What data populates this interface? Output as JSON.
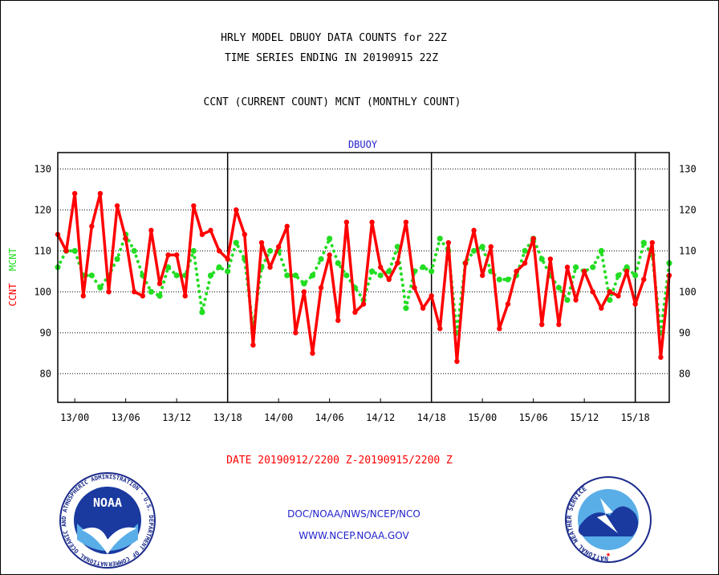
{
  "header": {
    "title_line1": "HRLY MODEL DBUOY DATA COUNTS for 22Z",
    "title_line2": "TIME SERIES ENDING IN 20190915 22Z",
    "subtitle": "CCNT (CURRENT COUNT) MCNT (MONTHLY COUNT)"
  },
  "footer": {
    "date_range": "DATE 20190912/2200 Z-20190915/2200 Z",
    "org": "DOC/NOAA/NWS/NCEP/NCO",
    "url": "WWW.NCEP.NOAA.GOV"
  },
  "logos": {
    "noaa_text": "NOAA",
    "noaa_ring_text": "NATIONAL OCEANIC AND ATMOSPHERIC ADMINISTRATION · U.S. DEPARTMENT OF COMMERCE ·",
    "nws_ring_text": "NATIONAL WEATHER SERVICE"
  },
  "colors": {
    "ccnt": "#ff0000",
    "mcnt": "#22dd22",
    "grid": "#000000",
    "series_label": "#2222cc"
  },
  "chart_data": {
    "type": "line",
    "title": "DBUOY",
    "ylabel_left": [
      "CCNT",
      "MCNT"
    ],
    "ylim": [
      73,
      134
    ],
    "yticks": [
      80,
      90,
      100,
      110,
      120,
      130
    ],
    "x_range": [
      -2,
      70
    ],
    "xticks": [
      {
        "x": 0,
        "label": "13/00"
      },
      {
        "x": 6,
        "label": "13/06"
      },
      {
        "x": 12,
        "label": "13/12"
      },
      {
        "x": 18,
        "label": "13/18"
      },
      {
        "x": 24,
        "label": "14/00"
      },
      {
        "x": 30,
        "label": "14/06"
      },
      {
        "x": 36,
        "label": "14/12"
      },
      {
        "x": 42,
        "label": "14/18"
      },
      {
        "x": 48,
        "label": "15/00"
      },
      {
        "x": 54,
        "label": "15/06"
      },
      {
        "x": 60,
        "label": "15/12"
      },
      {
        "x": 66,
        "label": "15/18"
      }
    ],
    "day_boundaries": [
      18,
      42,
      66
    ],
    "grid": true,
    "series": [
      {
        "name": "CCNT",
        "style": "solid",
        "start_x": -2,
        "values": [
          114,
          110,
          124,
          99,
          116,
          124,
          100,
          121,
          113,
          100,
          99,
          115,
          102,
          109,
          109,
          99,
          121,
          114,
          115,
          110,
          108,
          120,
          114,
          87,
          112,
          106,
          111,
          116,
          90,
          100,
          85,
          101,
          109,
          93,
          117,
          95,
          97,
          117,
          106,
          103,
          107,
          117,
          101,
          96,
          99,
          91,
          112,
          83,
          107,
          115,
          104,
          111,
          91,
          97,
          105,
          107,
          113,
          92,
          108,
          92,
          106,
          98,
          105,
          100,
          96,
          100,
          99,
          105,
          97,
          103,
          112,
          84,
          104
        ]
      },
      {
        "name": "MCNT",
        "style": "dotted",
        "start_x": -2,
        "values": [
          106,
          110,
          110,
          104,
          104,
          101,
          104,
          108,
          114,
          110,
          104,
          100,
          99,
          106,
          104,
          104,
          110,
          95,
          104,
          106,
          105,
          112,
          108,
          91,
          106,
          110,
          110,
          104,
          104,
          102,
          104,
          108,
          113,
          107,
          104,
          101,
          98,
          105,
          104,
          105,
          111,
          96,
          105,
          106,
          105,
          113,
          110,
          90,
          107,
          110,
          111,
          105,
          103,
          103,
          104,
          110,
          113,
          108,
          104,
          101,
          98,
          106,
          105,
          106,
          110,
          98,
          104,
          106,
          104,
          112,
          109,
          90,
          107
        ]
      }
    ]
  }
}
